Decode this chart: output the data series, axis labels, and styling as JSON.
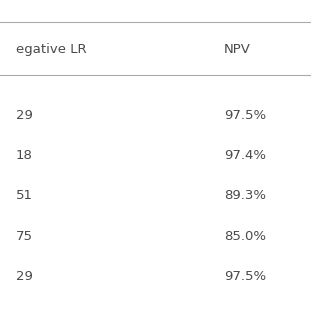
{
  "col1_header": "egative LR",
  "col2_header": "NPV",
  "col1_values": [
    "29",
    "18",
    "51",
    "75",
    "29"
  ],
  "col2_values": [
    "97.5%",
    "97.4%",
    "89.3%",
    "85.0%",
    "97.5%"
  ],
  "bg_color": "#ffffff",
  "text_color": "#4a4a4a",
  "header_color": "#4a4a4a",
  "line_color": "#aaaaaa",
  "font_size": 9.5,
  "header_font_size": 9.5
}
